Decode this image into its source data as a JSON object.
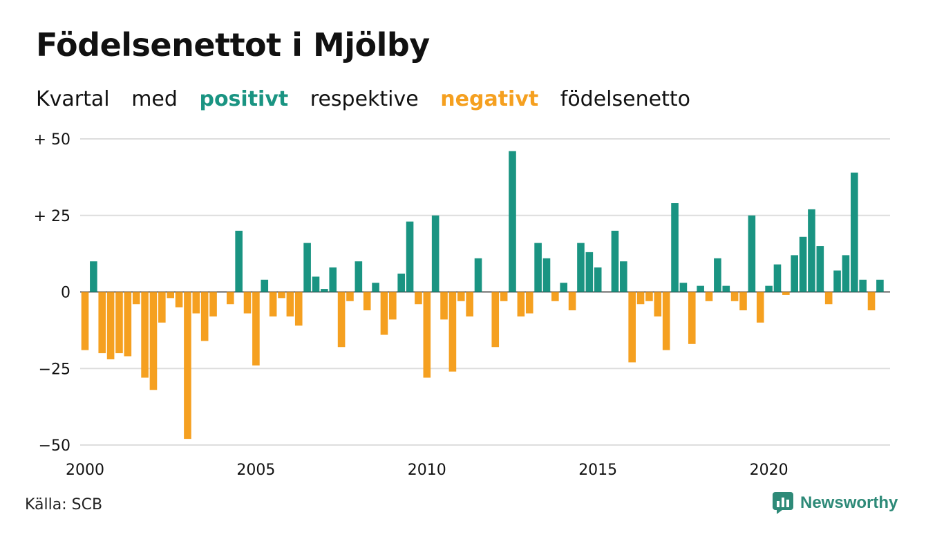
{
  "title": "Födelsenettot i Mjölby",
  "subtitle": {
    "parts": [
      "Kvartal",
      "med",
      "positivt",
      "respektive",
      "negativt",
      "födelsenetto"
    ]
  },
  "source": "Källa: SCB",
  "brand": "Newsworthy",
  "colors": {
    "positive": "#1a9482",
    "negative": "#f5a020",
    "grid": "#dddddd"
  },
  "chart_data": {
    "type": "bar",
    "title": "Födelsenettot i Mjölby",
    "ylim": [
      -50,
      50
    ],
    "yticks": [
      {
        "value": 50,
        "label": "+ 50"
      },
      {
        "value": 25,
        "label": "+ 25"
      },
      {
        "value": 0,
        "label": "0"
      },
      {
        "value": -25,
        "label": "−25"
      },
      {
        "value": -50,
        "label": "−50"
      }
    ],
    "xticks": [
      "2000",
      "2005",
      "2010",
      "2015",
      "2020"
    ],
    "grid": true,
    "start_year": 2000,
    "values": [
      -19,
      10,
      -20,
      -22,
      -20,
      -21,
      -4,
      -28,
      -32,
      -10,
      -2,
      -5,
      -48,
      -7,
      -16,
      -8,
      0,
      -4,
      20,
      -7,
      -24,
      4,
      -8,
      -2,
      -8,
      -11,
      16,
      5,
      1,
      8,
      -18,
      -3,
      10,
      -6,
      3,
      -14,
      -9,
      6,
      23,
      -4,
      -28,
      25,
      -9,
      -26,
      -3,
      -8,
      11,
      0,
      -18,
      -3,
      46,
      -8,
      -7,
      16,
      11,
      -3,
      3,
      -6,
      16,
      13,
      8,
      0,
      20,
      10,
      -23,
      -4,
      -3,
      -8,
      -19,
      29,
      3,
      -17,
      2,
      -3,
      11,
      2,
      -3,
      -6,
      25,
      -10,
      2,
      9,
      -1,
      12,
      18,
      27,
      15,
      -4,
      7,
      12,
      39,
      4,
      -6,
      4
    ]
  }
}
